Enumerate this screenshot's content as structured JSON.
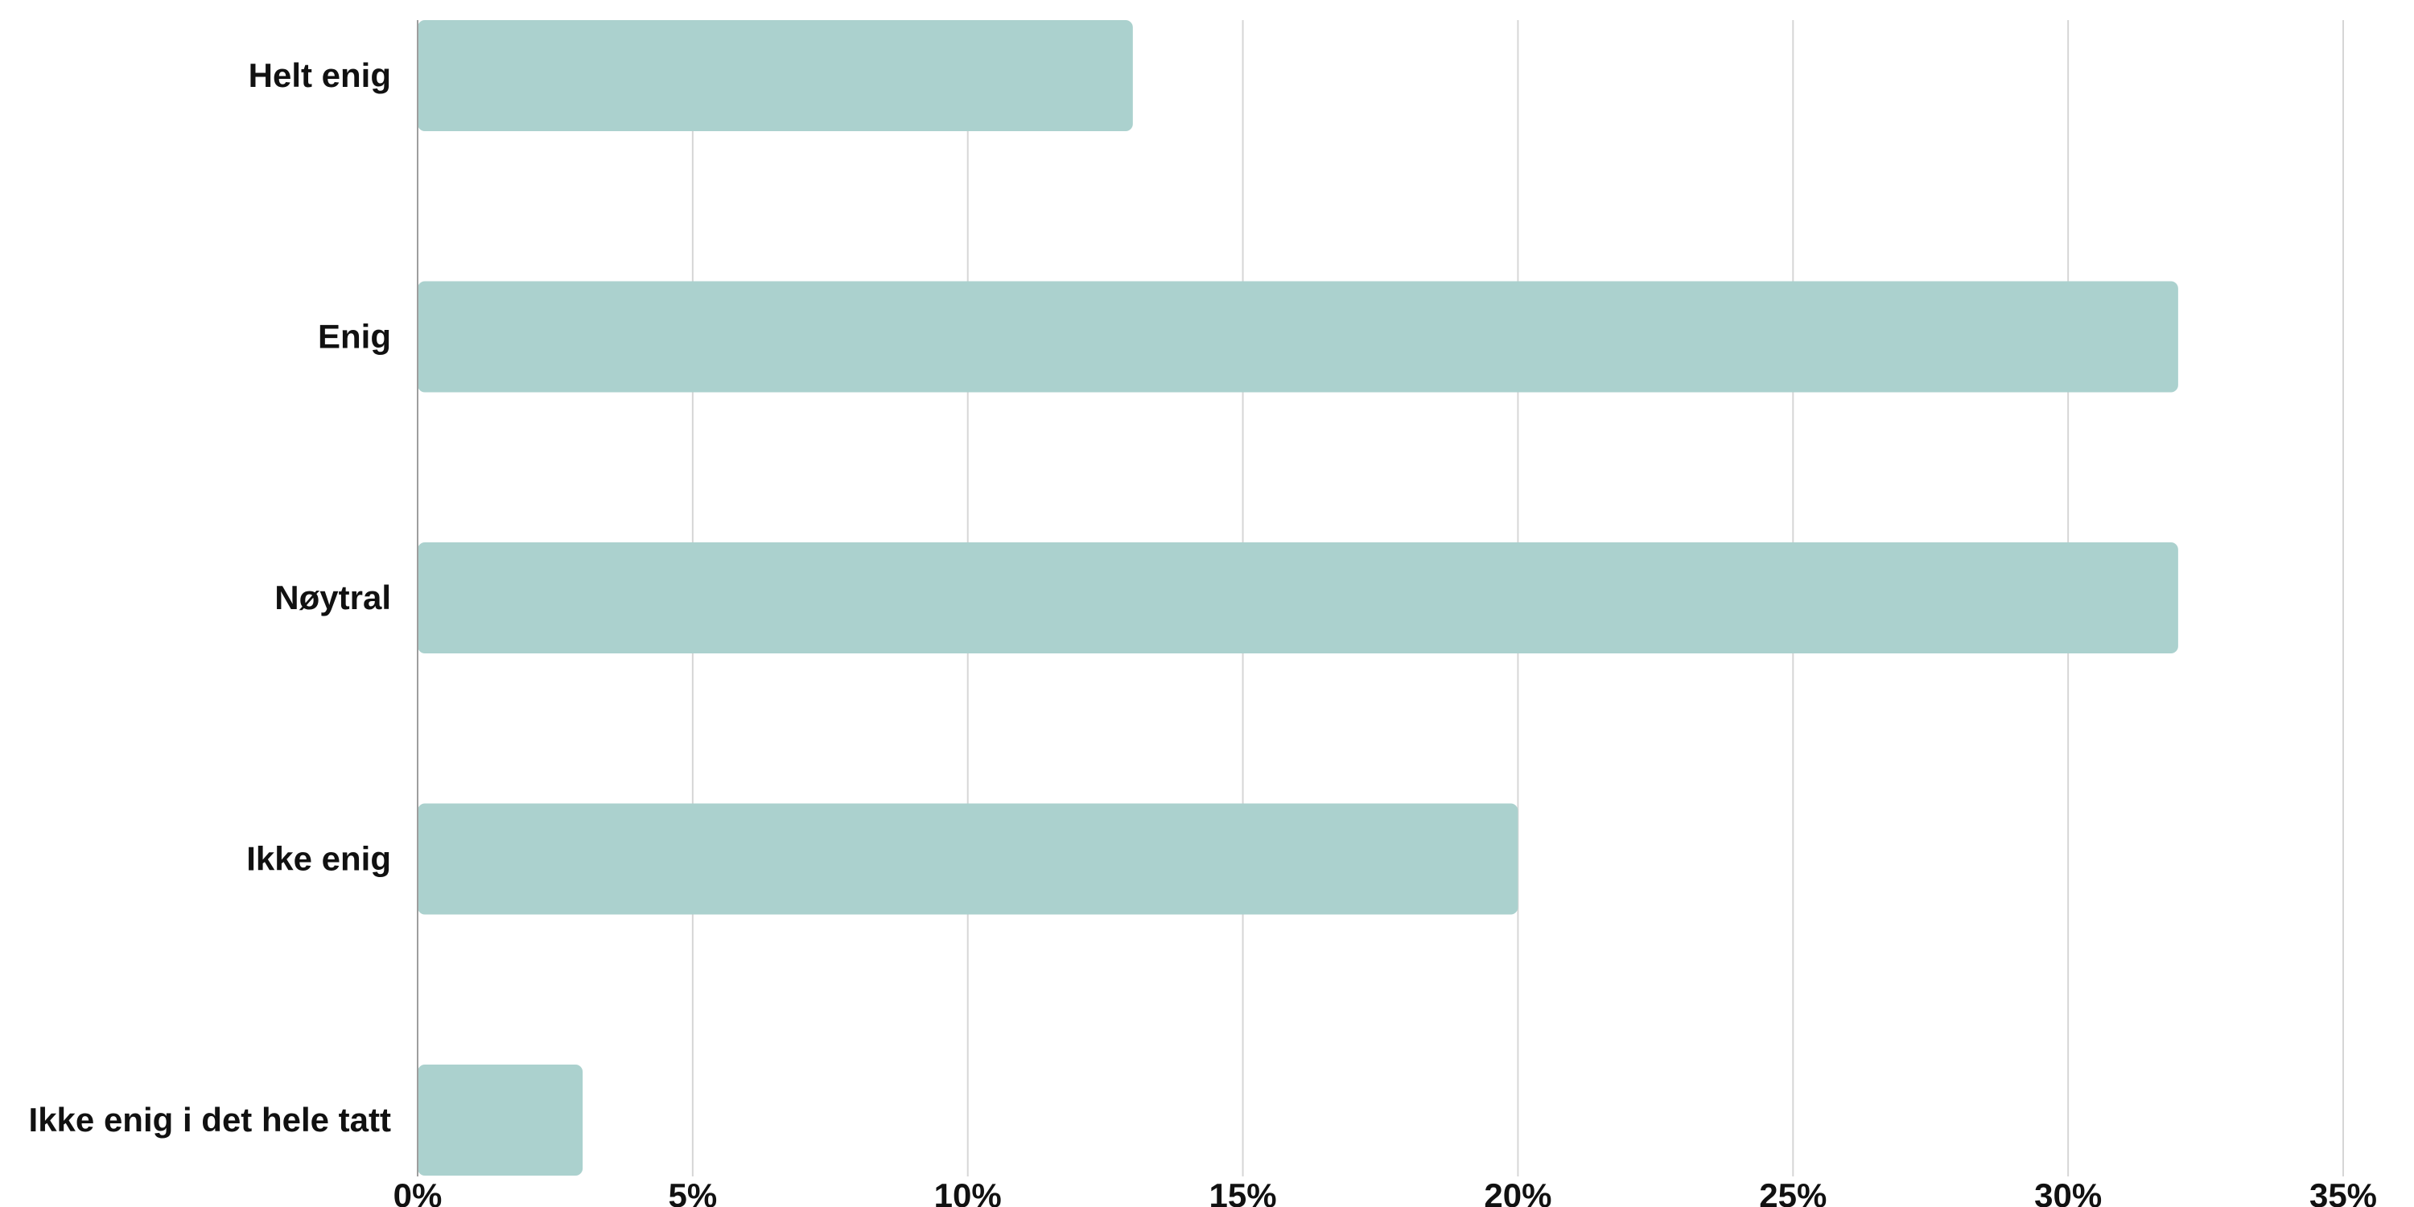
{
  "chart_data": {
    "type": "bar",
    "orientation": "horizontal",
    "categories": [
      "Helt enig",
      "Enig",
      "Nøytral",
      "Ikke enig",
      "Ikke enig i det hele tatt"
    ],
    "values": [
      13,
      32,
      32,
      20,
      3
    ],
    "xlim": [
      0,
      35
    ],
    "x_ticks": [
      0,
      5,
      10,
      15,
      20,
      25,
      30,
      35
    ],
    "x_tick_labels": [
      "0%",
      "5%",
      "10%",
      "15%",
      "20%",
      "25%",
      "30%",
      "35%"
    ],
    "grid": true,
    "legend": "none",
    "colors": {
      "bar": "#abd1ce",
      "grid": "#d6d6d6",
      "axis": "#9e9e9e",
      "text": "#111111"
    }
  }
}
